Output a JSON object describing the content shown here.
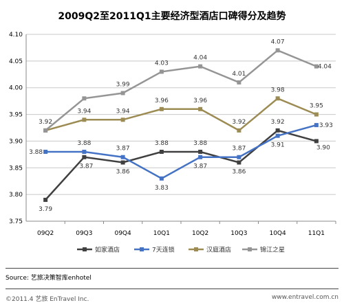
{
  "chart_data": {
    "type": "line",
    "title": "2009Q2至2011Q1主要经济型酒店口碑得分及趋势",
    "categories": [
      "09Q2",
      "09Q3",
      "09Q4",
      "10Q1",
      "10Q2",
      "10Q3",
      "10Q4",
      "11Q1"
    ],
    "ylim": [
      3.75,
      4.1
    ],
    "yticks": [
      "3.75",
      "3.80",
      "3.85",
      "3.90",
      "3.95",
      "4.00",
      "4.05",
      "4.10"
    ],
    "grid": true,
    "legend": "bottom",
    "series": [
      {
        "name": "如家酒店",
        "color": "#404040",
        "values": [
          3.79,
          3.87,
          3.86,
          3.88,
          3.88,
          3.86,
          3.92,
          3.9
        ],
        "labels": [
          "3.79",
          "3.87",
          "3.86",
          "3.88",
          "3.88",
          "3.86",
          "3.92",
          "3.90"
        ]
      },
      {
        "name": "7天连锁",
        "color": "#4472C4",
        "values": [
          3.88,
          3.88,
          3.87,
          3.83,
          3.87,
          3.87,
          3.91,
          3.93
        ],
        "labels": [
          "3.88",
          "3.88",
          "3.87",
          "3.83",
          "3.87",
          "3.87",
          "3.91",
          "3.93"
        ]
      },
      {
        "name": "汉庭酒店",
        "color": "#9C8B52",
        "values": [
          3.92,
          3.94,
          3.94,
          3.96,
          3.96,
          3.92,
          3.98,
          3.95
        ],
        "labels": [
          "3.92",
          "3.94",
          "3.94",
          "3.96",
          "3.96",
          "3.92",
          "3.98",
          "3.95"
        ]
      },
      {
        "name": "锦江之星",
        "color": "#959595",
        "values": [
          3.92,
          3.98,
          3.99,
          4.03,
          4.04,
          4.01,
          4.07,
          4.04
        ],
        "labels": [
          "",
          "",
          "3.99",
          "4.03",
          "4.04",
          "4.01",
          "4.07",
          "4.04"
        ]
      }
    ]
  },
  "source": "Source: 艺旅决策智库enhotel",
  "copyright": "©2011.4 艺旅 EnTravel Inc.",
  "website": "www.entravel.com.cn"
}
